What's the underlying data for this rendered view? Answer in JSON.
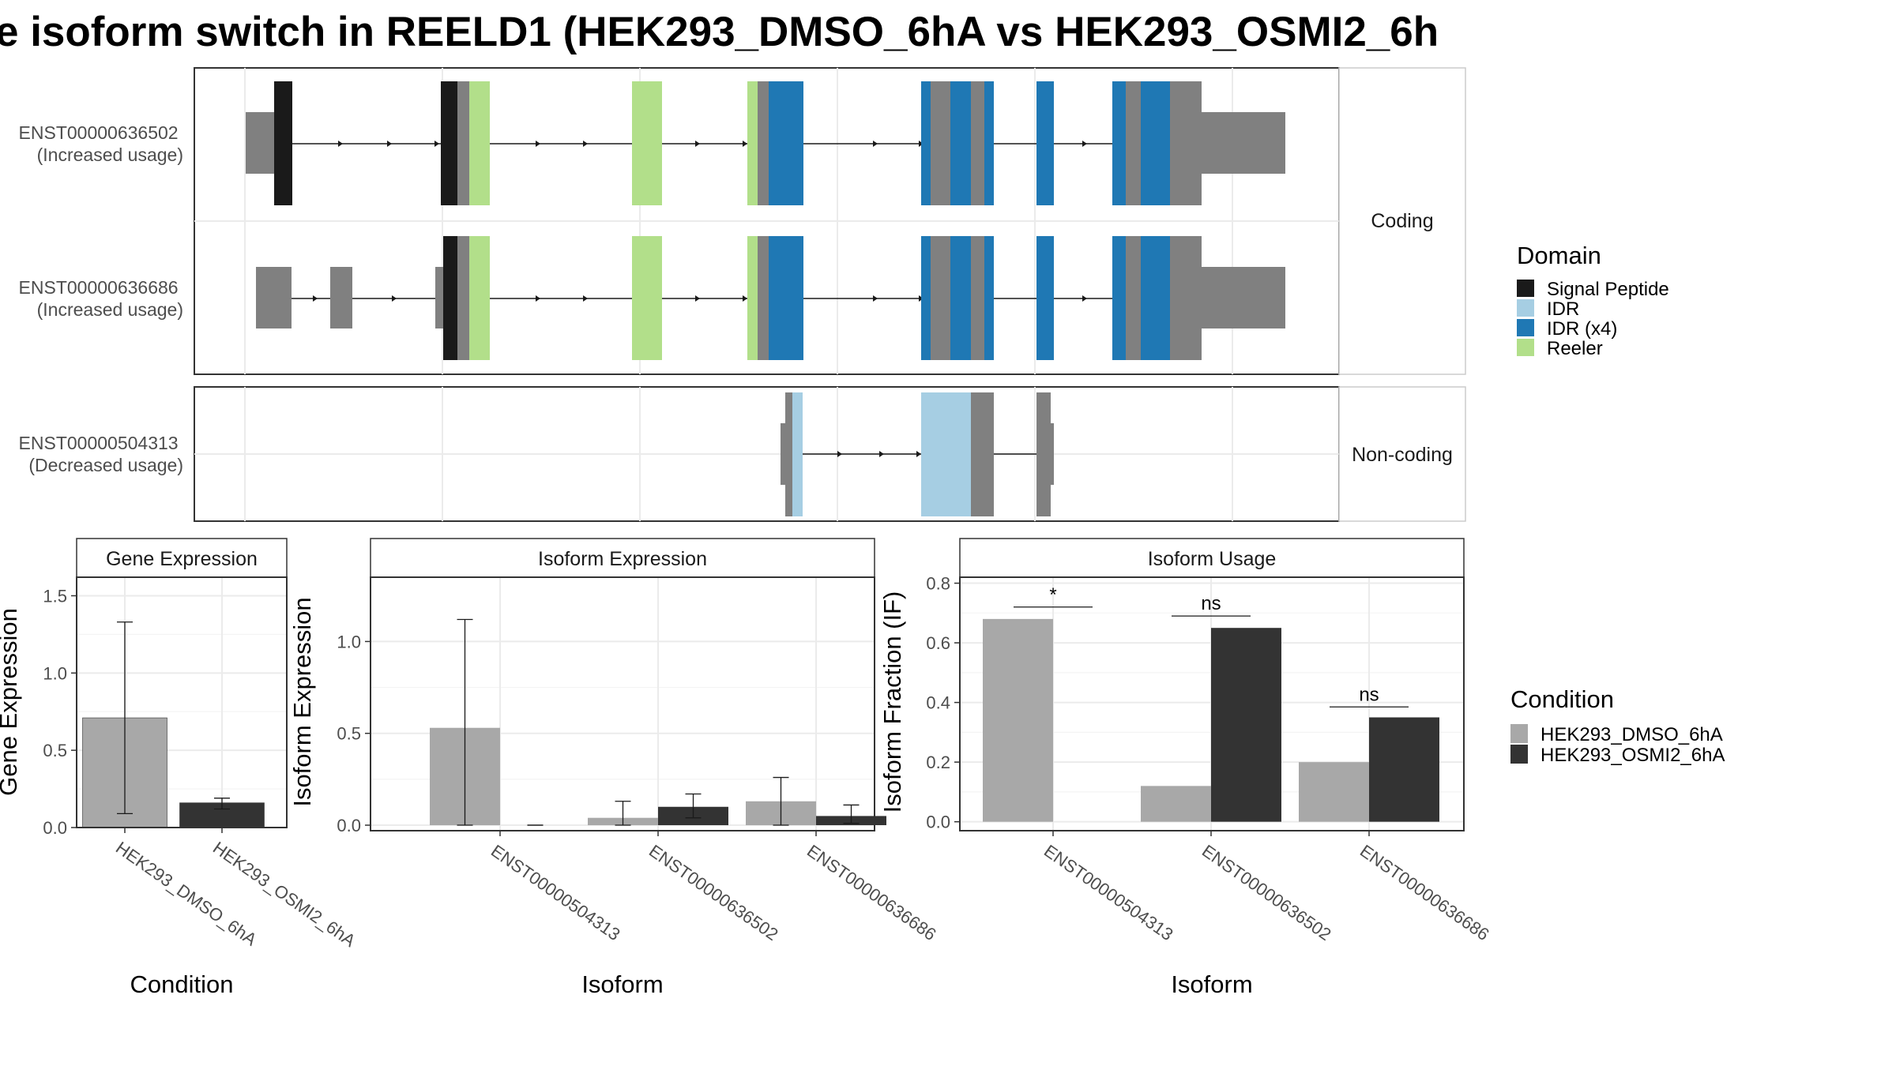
{
  "title": "e isoform switch in REELD1 (HEK293_DMSO_6hA vs HEK293_OSMI2_6h",
  "colors": {
    "signal_peptide": "#1a1a1a",
    "idr": "#a6cee3",
    "idr_x4": "#1f78b4",
    "reeler": "#b2df8a",
    "exon": "#808080",
    "dmso": "#a8a8a8",
    "osmi2": "#333333"
  },
  "structure": {
    "panels": [
      {
        "strip": "Coding",
        "transcripts": [
          {
            "line1": "ENST00000636502",
            "line2": "(Increased usage)"
          },
          {
            "line1": "ENST00000636686",
            "line2": "(Increased usage)"
          }
        ]
      },
      {
        "strip": "Non-coding",
        "transcripts": [
          {
            "line1": "ENST00000504313",
            "line2": "(Decreased usage)"
          }
        ]
      }
    ],
    "domain_legend": {
      "title": "Domain",
      "items": [
        {
          "label": "Signal Peptide",
          "color_key": "signal_peptide"
        },
        {
          "label": "IDR",
          "color_key": "idr"
        },
        {
          "label": "IDR (x4)",
          "color_key": "idr_x4"
        },
        {
          "label": "Reeler",
          "color_key": "reeler"
        }
      ]
    }
  },
  "chart_data": [
    {
      "type": "bar",
      "strip": "Gene Expression",
      "xlabel": "Condition",
      "ylabel": "Gene Expression",
      "ylim": [
        0,
        1.62
      ],
      "yticks": [
        "0.0",
        "0.5",
        "1.0",
        "1.5"
      ],
      "categories": [
        "HEK293_DMSO_6hA",
        "HEK293_OSMI2_6hA"
      ],
      "values": [
        0.71,
        0.16
      ],
      "error_low": [
        0.09,
        0.12
      ],
      "error_high": [
        1.33,
        0.19
      ]
    },
    {
      "type": "bar",
      "strip": "Isoform Expression",
      "xlabel": "Isoform",
      "ylabel": "Isoform Expression",
      "ylim": [
        -0.03,
        1.35
      ],
      "yticks": [
        "0.0",
        "0.5",
        "1.0"
      ],
      "categories": [
        "ENST00000504313",
        "ENST00000636502",
        "ENST00000636686"
      ],
      "series": [
        {
          "name": "HEK293_DMSO_6hA",
          "values": [
            0.53,
            0.04,
            0.13
          ],
          "error_low": [
            0.0,
            0.0,
            0.0
          ],
          "error_high": [
            1.12,
            0.13,
            0.26
          ]
        },
        {
          "name": "HEK293_OSMI2_6hA",
          "values": [
            0.0,
            0.1,
            0.05
          ],
          "error_low": [
            0.0,
            0.04,
            0.01
          ],
          "error_high": [
            0.0,
            0.17,
            0.11
          ]
        }
      ]
    },
    {
      "type": "bar",
      "strip": "Isoform Usage",
      "xlabel": "Isoform",
      "ylabel": "Isoform Fraction (IF)",
      "ylim": [
        -0.03,
        0.82
      ],
      "yticks": [
        "0.0",
        "0.2",
        "0.4",
        "0.6",
        "0.8"
      ],
      "categories": [
        "ENST00000504313",
        "ENST00000636502",
        "ENST00000636686"
      ],
      "series": [
        {
          "name": "HEK293_DMSO_6hA",
          "values": [
            0.68,
            0.12,
            0.2
          ]
        },
        {
          "name": "HEK293_OSMI2_6hA",
          "values": [
            0.0,
            0.65,
            0.35
          ]
        }
      ],
      "significance": [
        "*",
        "ns",
        "ns"
      ],
      "significance_y": [
        0.72,
        0.69,
        0.385
      ]
    }
  ],
  "condition_legend": {
    "title": "Condition",
    "items": [
      {
        "label": "HEK293_DMSO_6hA",
        "color_key": "dmso"
      },
      {
        "label": "HEK293_OSMI2_6hA",
        "color_key": "osmi2"
      }
    ]
  }
}
